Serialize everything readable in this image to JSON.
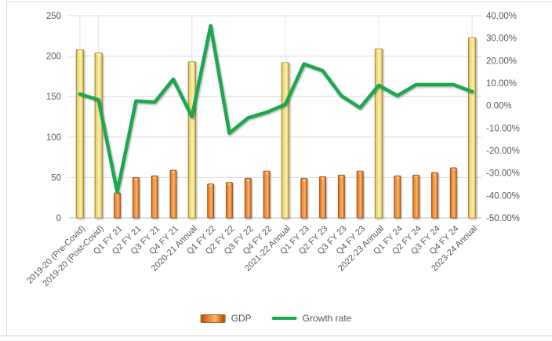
{
  "chart_data": {
    "type": "bar",
    "subtype": "combo-bar-line-dual-axis",
    "title": "",
    "categories": [
      "2019-20 (Pre-Covid)",
      "2019-20 (Post-Covid)",
      "Q1 FY 21",
      "Q2 FY 21",
      "Q3 FY 21",
      "Q4 FY 21",
      "2020-21 Annual",
      "Q1 FY 22",
      "Q2 FY 22",
      "Q3 FY 22",
      "Q4 FY 22",
      "2021-22 Annual",
      "Q1 FY 23",
      "Q2 FY 23",
      "Q3 FY 23",
      "Q4 FY 23",
      "2022-23 Annual",
      "Q1 FY 24",
      "Q2 FY 24",
      "Q3 FY 24",
      "Q4 FY 24",
      "2023-24 Annual"
    ],
    "series": [
      {
        "name": "GDP",
        "type": "bar",
        "axis": "left",
        "values": [
          208,
          204,
          31,
          50,
          52,
          59,
          193,
          42,
          44,
          49,
          58,
          192,
          49,
          51,
          53,
          58,
          209,
          52,
          53,
          56,
          62,
          223
        ],
        "annual_bar_indices": [
          0,
          1,
          6,
          11,
          16,
          21
        ]
      },
      {
        "name": "Growth rate",
        "type": "line",
        "axis": "right",
        "values_pct": [
          5.1,
          2.5,
          -38.5,
          2.0,
          1.5,
          11.7,
          -5.0,
          35.5,
          -12.3,
          -5.5,
          -3.0,
          0.5,
          18.5,
          15.5,
          4.3,
          -1.0,
          9.0,
          4.4,
          9.3,
          9.3,
          9.3,
          6.2
        ]
      }
    ],
    "left_axis": {
      "min": 0,
      "max": 250,
      "step": 50,
      "tick_labels": [
        "0",
        "50",
        "100",
        "150",
        "200",
        "250"
      ]
    },
    "right_axis": {
      "min": -50,
      "max": 40,
      "step": 10,
      "tick_labels_top_to_bottom": [
        "40.00%",
        "30.00%",
        "20.00%",
        "10.00%",
        "0.00%",
        "-10.00%",
        "-20.00%",
        "-30.00%",
        "-40.00%",
        "-50.00%"
      ]
    },
    "legend": [
      {
        "label": "GDP",
        "swatch": "bar"
      },
      {
        "label": "Growth rate",
        "swatch": "line"
      }
    ],
    "legend_position": "bottom",
    "grid": "horizontal-major",
    "colors": {
      "quarter_bar_mid": "#f59b4c",
      "quarter_bar_edge": "#9e4a0c",
      "quarter_bar_highlight": "#fbb671",
      "quarter_bar_cap": "#ffc97e",
      "annual_bar_mid": "#f7e68f",
      "annual_bar_edge": "#a98a2f",
      "annual_bar_highlight": "#fcf0b0",
      "annual_bar_cap": "#fff3bf",
      "line": "#1ea750",
      "gridline": "#dcdcdc",
      "axis_line": "#c0c0c0",
      "label_text": "#595959"
    }
  }
}
